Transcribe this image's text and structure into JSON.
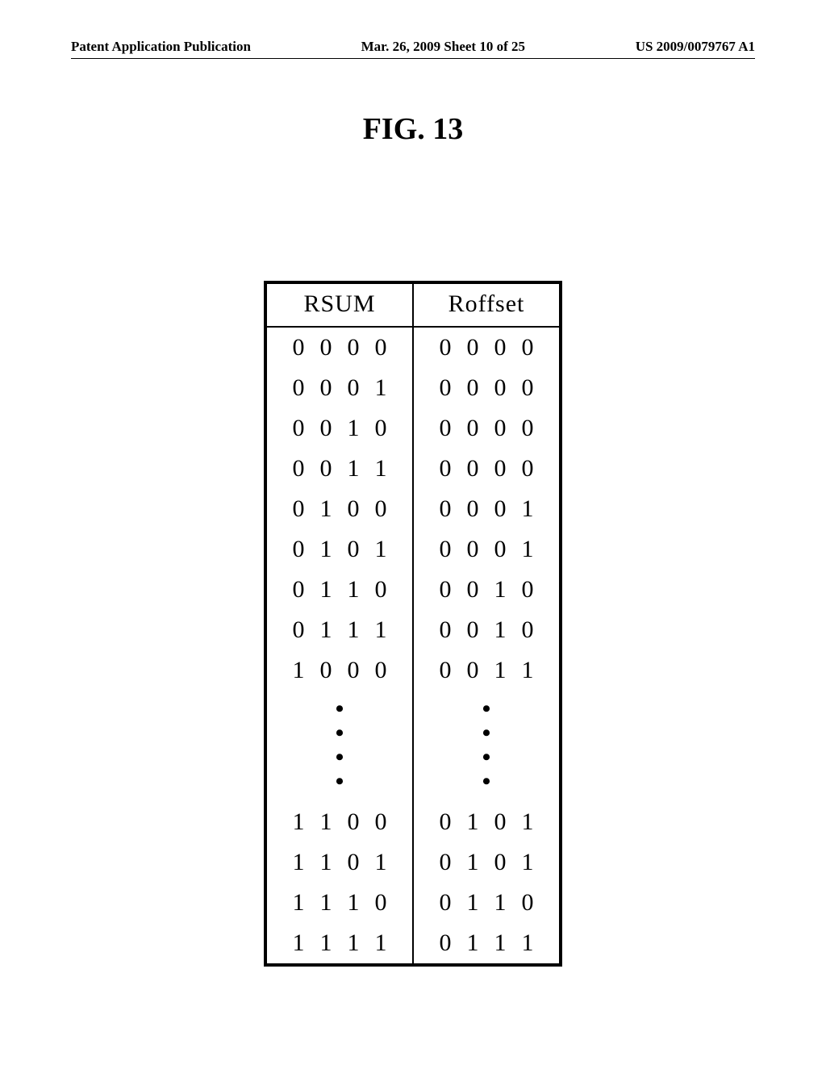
{
  "header": {
    "left": "Patent Application Publication",
    "center": "Mar. 26, 2009  Sheet 10 of 25",
    "right": "US 2009/0079767 A1"
  },
  "figure_label": "FIG. 13",
  "table": {
    "header_left": "RSUM",
    "header_right": "Roffset",
    "rows_top": [
      {
        "rsum": [
          "0",
          "0",
          "0",
          "0"
        ],
        "roff": [
          "0",
          "0",
          "0",
          "0"
        ]
      },
      {
        "rsum": [
          "0",
          "0",
          "0",
          "1"
        ],
        "roff": [
          "0",
          "0",
          "0",
          "0"
        ]
      },
      {
        "rsum": [
          "0",
          "0",
          "1",
          "0"
        ],
        "roff": [
          "0",
          "0",
          "0",
          "0"
        ]
      },
      {
        "rsum": [
          "0",
          "0",
          "1",
          "1"
        ],
        "roff": [
          "0",
          "0",
          "0",
          "0"
        ]
      },
      {
        "rsum": [
          "0",
          "1",
          "0",
          "0"
        ],
        "roff": [
          "0",
          "0",
          "0",
          "1"
        ]
      },
      {
        "rsum": [
          "0",
          "1",
          "0",
          "1"
        ],
        "roff": [
          "0",
          "0",
          "0",
          "1"
        ]
      },
      {
        "rsum": [
          "0",
          "1",
          "1",
          "0"
        ],
        "roff": [
          "0",
          "0",
          "1",
          "0"
        ]
      },
      {
        "rsum": [
          "0",
          "1",
          "1",
          "1"
        ],
        "roff": [
          "0",
          "0",
          "1",
          "0"
        ]
      },
      {
        "rsum": [
          "1",
          "0",
          "0",
          "0"
        ],
        "roff": [
          "0",
          "0",
          "1",
          "1"
        ]
      }
    ],
    "rows_bottom": [
      {
        "rsum": [
          "1",
          "1",
          "0",
          "0"
        ],
        "roff": [
          "0",
          "1",
          "0",
          "1"
        ]
      },
      {
        "rsum": [
          "1",
          "1",
          "0",
          "1"
        ],
        "roff": [
          "0",
          "1",
          "0",
          "1"
        ]
      },
      {
        "rsum": [
          "1",
          "1",
          "1",
          "0"
        ],
        "roff": [
          "0",
          "1",
          "1",
          "0"
        ]
      },
      {
        "rsum": [
          "1",
          "1",
          "1",
          "1"
        ],
        "roff": [
          "0",
          "1",
          "1",
          "1"
        ]
      }
    ]
  }
}
